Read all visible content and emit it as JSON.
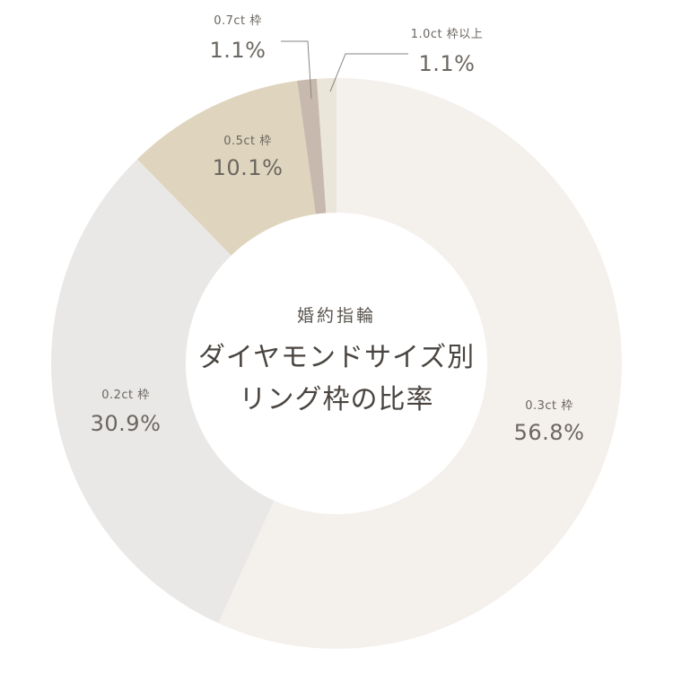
{
  "chart_data": {
    "type": "pie",
    "title_lines": [
      "婚約指輪",
      "ダイヤモンドサイズ別",
      "リング枠の比率"
    ],
    "series": [
      {
        "category": "0.3ct 枠",
        "value": 56.8,
        "label": "56.8%",
        "color": "#f4f0ec"
      },
      {
        "category": "0.2ct 枠",
        "value": 30.9,
        "label": "30.9%",
        "color": "#e9e8e6"
      },
      {
        "category": "0.5ct 枠",
        "value": 10.1,
        "label": "10.1%",
        "color": "#dfd4bd"
      },
      {
        "category": "0.7ct 枠",
        "value": 1.1,
        "label": "1.1%",
        "color": "#c7b9ae"
      },
      {
        "category": "1.0ct 枠以上",
        "value": 1.1,
        "label": "1.1%",
        "color": "#ebe6da"
      }
    ]
  }
}
